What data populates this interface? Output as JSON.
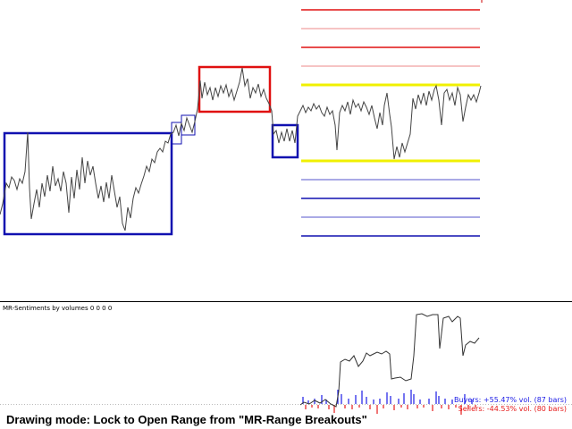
{
  "indicator": {
    "title": "MR-Sentiments by volumes 0 0 0 0",
    "buyers_label": "Buyers: +55.47% vol. (87 bars)",
    "sellers_label": "Sellers: -44.53% vol. (80 bars)"
  },
  "status": {
    "message": "Drawing mode: Lock to Open Range from \"MR-Range Breakouts\""
  },
  "colors": {
    "blue_range": "#1010b0",
    "red_range": "#e01010",
    "yellow_level": "#f0f000",
    "price_line": "#444444",
    "buyers": "#1a1ae6",
    "sellers": "#e61a1a"
  }
}
